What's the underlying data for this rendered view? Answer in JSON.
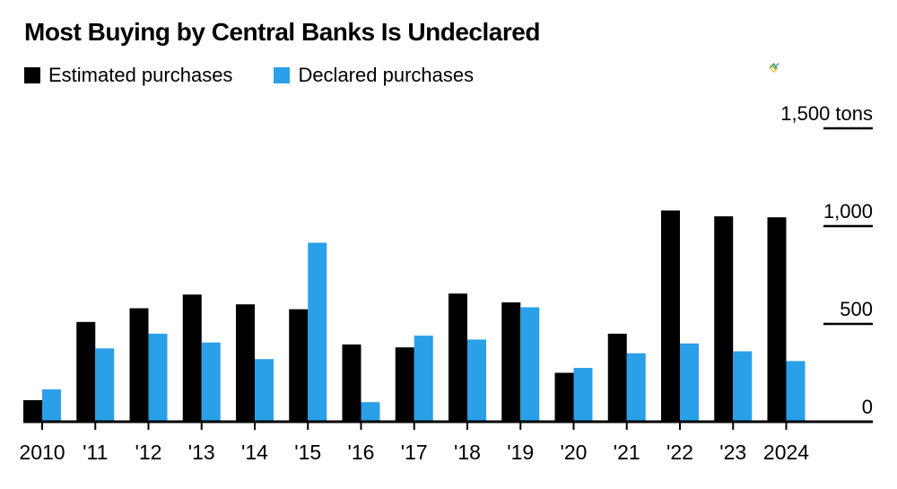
{
  "header": {
    "title": "Most Buying by Central Banks Is Undeclared",
    "legend": [
      {
        "label": "Estimated purchases",
        "color": "#000000"
      },
      {
        "label": "Declared purchases",
        "color": "#29A0E8"
      }
    ]
  },
  "logo": {
    "name": "litefinance-logo",
    "green": "#3B8C3F",
    "blue": "#4A90D9",
    "yellow": "#F0C12F"
  },
  "chart_data": {
    "type": "bar",
    "title": "Most Buying by Central Banks Is Undeclared",
    "unit": "tons",
    "categories": [
      "2010",
      "'11",
      "'12",
      "'13",
      "'14",
      "'15",
      "'16",
      "'17",
      "'18",
      "'19",
      "'20",
      "'21",
      "'22",
      "'23",
      "2024"
    ],
    "series": [
      {
        "name": "Estimated purchases",
        "color": "#000000",
        "values": [
          110,
          510,
          580,
          650,
          600,
          575,
          395,
          380,
          655,
          610,
          250,
          450,
          1080,
          1050,
          1045
        ]
      },
      {
        "name": "Declared purchases",
        "color": "#29A0E8",
        "values": [
          165,
          375,
          450,
          405,
          320,
          915,
          100,
          440,
          420,
          585,
          275,
          350,
          400,
          360,
          310
        ]
      }
    ],
    "y_axis": {
      "side": "right",
      "ticks": [
        0,
        500,
        1000,
        1500
      ],
      "tick_labels": [
        "0",
        "500",
        "1,000",
        "1,500 tons"
      ],
      "min": 0,
      "max": 1500
    },
    "x_axis": {
      "label": "",
      "tick_marks": true
    },
    "legend_position": "top-left",
    "grid": "off",
    "axis_color": "#000000"
  }
}
